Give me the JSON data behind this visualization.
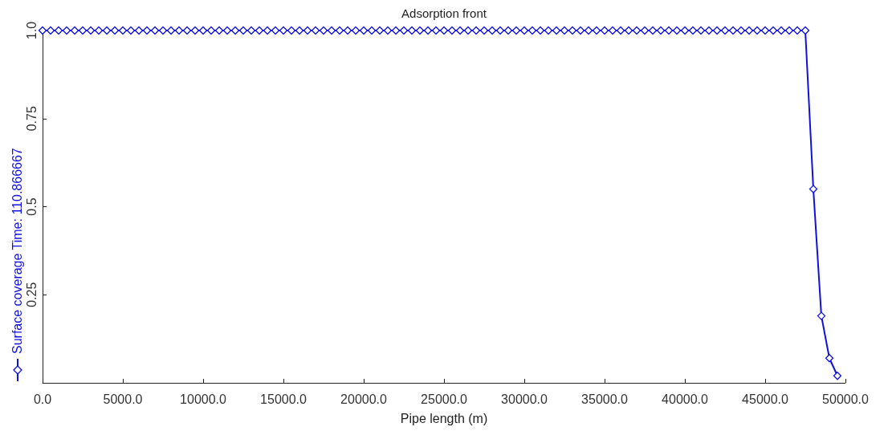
{
  "chart_data": {
    "type": "line",
    "title": "Adsorption front",
    "xlabel": "Pipe length (m)",
    "x": [
      0,
      500,
      1000,
      1500,
      2000,
      2500,
      3000,
      3500,
      4000,
      4500,
      5000,
      5500,
      6000,
      6500,
      7000,
      7500,
      8000,
      8500,
      9000,
      9500,
      10000,
      10500,
      11000,
      11500,
      12000,
      12500,
      13000,
      13500,
      14000,
      14500,
      15000,
      15500,
      16000,
      16500,
      17000,
      17500,
      18000,
      18500,
      19000,
      19500,
      20000,
      20500,
      21000,
      21500,
      22000,
      22500,
      23000,
      23500,
      24000,
      24500,
      25000,
      25500,
      26000,
      26500,
      27000,
      27500,
      28000,
      28500,
      29000,
      29500,
      30000,
      30500,
      31000,
      31500,
      32000,
      32500,
      33000,
      33500,
      34000,
      34500,
      35000,
      35500,
      36000,
      36500,
      37000,
      37500,
      38000,
      38500,
      39000,
      39500,
      40000,
      40500,
      41000,
      41500,
      42000,
      42500,
      43000,
      43500,
      44000,
      44500,
      45000,
      45500,
      46000,
      46500,
      47000,
      47500,
      48000,
      48500,
      49000,
      49500
    ],
    "series": [
      {
        "name": "Surface coverage  Time: 110.866667",
        "color": "#1010e0",
        "values": [
          1,
          1,
          1,
          1,
          1,
          1,
          1,
          1,
          1,
          1,
          1,
          1,
          1,
          1,
          1,
          1,
          1,
          1,
          1,
          1,
          1,
          1,
          1,
          1,
          1,
          1,
          1,
          1,
          1,
          1,
          1,
          1,
          1,
          1,
          1,
          1,
          1,
          1,
          1,
          1,
          1,
          1,
          1,
          1,
          1,
          1,
          1,
          1,
          1,
          1,
          1,
          1,
          1,
          1,
          1,
          1,
          1,
          1,
          1,
          1,
          1,
          1,
          1,
          1,
          1,
          1,
          1,
          1,
          1,
          1,
          1,
          1,
          1,
          1,
          1,
          1,
          1,
          1,
          1,
          1,
          1,
          1,
          1,
          1,
          1,
          1,
          1,
          1,
          1,
          1,
          1,
          1,
          1,
          1,
          1,
          1,
          0.55,
          0.19,
          0.07,
          0.02
        ]
      }
    ],
    "xlim": [
      0,
      50000
    ],
    "xticks": [
      {
        "value": 0,
        "label": "0.0"
      },
      {
        "value": 5000,
        "label": "5000.0"
      },
      {
        "value": 10000,
        "label": "10000.0"
      },
      {
        "value": 15000,
        "label": "15000.0"
      },
      {
        "value": 20000,
        "label": "20000.0"
      },
      {
        "value": 25000,
        "label": "25000.0"
      },
      {
        "value": 30000,
        "label": "30000.0"
      },
      {
        "value": 35000,
        "label": "35000.0"
      },
      {
        "value": 40000,
        "label": "40000.0"
      },
      {
        "value": 45000,
        "label": "45000.0"
      },
      {
        "value": 50000,
        "label": "50000.0"
      }
    ],
    "ylim": [
      0,
      1
    ],
    "yticks": [
      0.25,
      0.5,
      0.75,
      {
        "value": 1,
        "label": "1.0"
      }
    ],
    "legend": "left",
    "grid": false,
    "marker": "diamond",
    "line_style": "solid"
  }
}
